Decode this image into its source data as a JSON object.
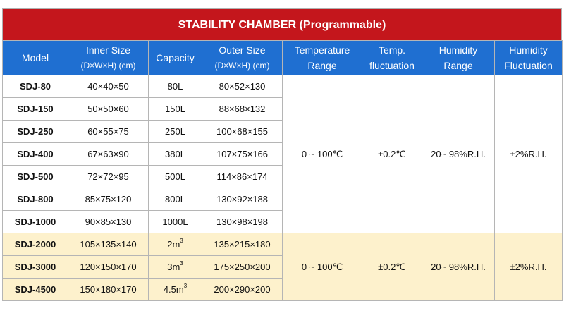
{
  "title": "STABILITY CHAMBER (Programmable)",
  "headers": [
    {
      "line1": "Model",
      "line2": ""
    },
    {
      "line1": "Inner Size",
      "line2": "(D×W×H) (cm)"
    },
    {
      "line1": "Capacity",
      "line2": ""
    },
    {
      "line1": "Outer Size",
      "line2": "(D×W×H) (cm)"
    },
    {
      "line1": "Temperature",
      "line2": "Range"
    },
    {
      "line1": "Temp.",
      "line2": "fluctuation"
    },
    {
      "line1": "Humidity",
      "line2": "Range"
    },
    {
      "line1": "Humidity",
      "line2": "Fluctuation"
    }
  ],
  "group1": {
    "rows": [
      {
        "model": "SDJ-80",
        "inner": "40×40×50",
        "capacity": "80L",
        "outer": "80×52×130"
      },
      {
        "model": "SDJ-150",
        "inner": "50×50×60",
        "capacity": "150L",
        "outer": "88×68×132"
      },
      {
        "model": "SDJ-250",
        "inner": "60×55×75",
        "capacity": "250L",
        "outer": "100×68×155"
      },
      {
        "model": "SDJ-400",
        "inner": "67×63×90",
        "capacity": "380L",
        "outer": "107×75×166"
      },
      {
        "model": "SDJ-500",
        "inner": "72×72×95",
        "capacity": "500L",
        "outer": "114×86×174"
      },
      {
        "model": "SDJ-800",
        "inner": "85×75×120",
        "capacity": "800L",
        "outer": "130×92×188"
      },
      {
        "model": "SDJ-1000",
        "inner": "90×85×130",
        "capacity": "1000L",
        "outer": "130×98×198"
      }
    ],
    "temp_range": "0 ~ 100℃",
    "temp_fluct": "±0.2℃",
    "hum_range": "20~ 98%R.H.",
    "hum_fluct": "±2%R.H."
  },
  "group2": {
    "rows": [
      {
        "model": "SDJ-2000",
        "inner": "105×135×140",
        "capacity": "2m",
        "cap_unit": "3",
        "outer": "135×215×180"
      },
      {
        "model": "SDJ-3000",
        "inner": "120×150×170",
        "capacity": "3m",
        "cap_unit": "3",
        "outer": "175×250×200"
      },
      {
        "model": "SDJ-4500",
        "inner": "150×180×170",
        "capacity": "4.5m",
        "cap_unit": "3",
        "outer": "200×290×200"
      }
    ],
    "temp_range": "0 ~ 100℃",
    "temp_fluct": "±0.2℃",
    "hum_range": "20~ 98%R.H.",
    "hum_fluct": "±2%R.H."
  }
}
